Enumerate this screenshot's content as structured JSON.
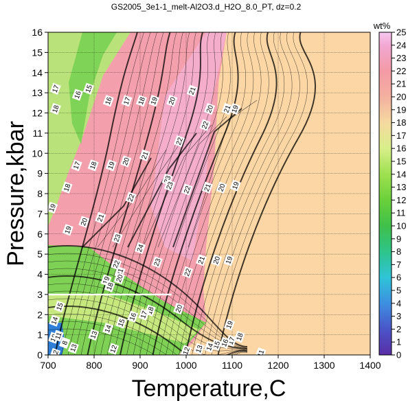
{
  "chart_data": {
    "type": "heatmap",
    "title": "GS2005_3e1-1_melt-Al2O3.d_H2O_8.0_PT, dz=0.2",
    "xlabel": "Temperature,C",
    "ylabel": "Pressure,kbar",
    "xlim": [
      700,
      1400
    ],
    "ylim": [
      0,
      16
    ],
    "xticks": [
      700,
      800,
      900,
      1000,
      1100,
      1200,
      1300,
      1400
    ],
    "yticks": [
      0,
      1,
      2,
      3,
      4,
      5,
      6,
      7,
      8,
      9,
      10,
      11,
      12,
      13,
      14,
      15,
      16
    ],
    "grid": true,
    "colorbar": {
      "label": "wt%",
      "range": [
        0,
        25
      ],
      "ticks": [
        0,
        1,
        2,
        3,
        4,
        5,
        6,
        7,
        8,
        9,
        10,
        11,
        12,
        13,
        14,
        15,
        16,
        17,
        18,
        19,
        20,
        21,
        22,
        23,
        24,
        25
      ],
      "stops": [
        {
          "v": 0,
          "color": "#5a2ea6"
        },
        {
          "v": 2,
          "color": "#4a55c8"
        },
        {
          "v": 4,
          "color": "#3d8fe0"
        },
        {
          "v": 6,
          "color": "#2fc4d8"
        },
        {
          "v": 8,
          "color": "#2ec48a"
        },
        {
          "v": 10,
          "color": "#3fc04a"
        },
        {
          "v": 12,
          "color": "#6ad03a"
        },
        {
          "v": 14,
          "color": "#9ee050"
        },
        {
          "v": 16,
          "color": "#d8ef8a"
        },
        {
          "v": 18,
          "color": "#f5d9a0"
        },
        {
          "v": 20,
          "color": "#f4b0a0"
        },
        {
          "v": 22,
          "color": "#f39aa6"
        },
        {
          "v": 24,
          "color": "#f2a8d2"
        },
        {
          "v": 25,
          "color": "#f6c8f0"
        }
      ]
    },
    "background_region_color": "#fcd6a4",
    "contour_labels": [
      {
        "text": "17",
        "x": 716,
        "y": 13.2
      },
      {
        "text": "15",
        "x": 788,
        "y": 13.2
      },
      {
        "text": "16",
        "x": 764,
        "y": 12.9
      },
      {
        "text": "16",
        "x": 831,
        "y": 12.6
      },
      {
        "text": "17",
        "x": 871,
        "y": 12.6
      },
      {
        "text": "18",
        "x": 903,
        "y": 12.6
      },
      {
        "text": "19",
        "x": 930,
        "y": 12.6
      },
      {
        "text": "20",
        "x": 969,
        "y": 12.6
      },
      {
        "text": "21",
        "x": 1013,
        "y": 13.1
      },
      {
        "text": "18",
        "x": 716,
        "y": 12.2
      },
      {
        "text": "20",
        "x": 1051,
        "y": 12.2
      },
      {
        "text": "19",
        "x": 1106,
        "y": 12.2
      },
      {
        "text": "21",
        "x": 1089,
        "y": 12.2
      },
      {
        "text": "22",
        "x": 1041,
        "y": 11.4
      },
      {
        "text": "22",
        "x": 985,
        "y": 10.6
      },
      {
        "text": "21",
        "x": 910,
        "y": 9.9
      },
      {
        "text": "20",
        "x": 869,
        "y": 9.6
      },
      {
        "text": "19",
        "x": 837,
        "y": 9.4
      },
      {
        "text": "18",
        "x": 798,
        "y": 9.4
      },
      {
        "text": "17",
        "x": 762,
        "y": 9.4
      },
      {
        "text": "18",
        "x": 741,
        "y": 8.3
      },
      {
        "text": "23",
        "x": 959,
        "y": 8.7
      },
      {
        "text": "23",
        "x": 964,
        "y": 8.4
      },
      {
        "text": "22",
        "x": 1002,
        "y": 8.2
      },
      {
        "text": "21",
        "x": 1046,
        "y": 8.3
      },
      {
        "text": "20",
        "x": 1077,
        "y": 8.3
      },
      {
        "text": "19",
        "x": 1107,
        "y": 8.4
      },
      {
        "text": "22",
        "x": 880,
        "y": 7.8
      },
      {
        "text": "21",
        "x": 814,
        "y": 6.8
      },
      {
        "text": "20",
        "x": 778,
        "y": 6.6
      },
      {
        "text": "19",
        "x": 743,
        "y": 6.2
      },
      {
        "text": "19",
        "x": 709,
        "y": 7.3
      },
      {
        "text": "23",
        "x": 850,
        "y": 5.8
      },
      {
        "text": "24",
        "x": 900,
        "y": 5.3
      },
      {
        "text": "23",
        "x": 937,
        "y": 4.6
      },
      {
        "text": "22",
        "x": 1003,
        "y": 4.1
      },
      {
        "text": "21",
        "x": 1033,
        "y": 4.7
      },
      {
        "text": "20",
        "x": 1066,
        "y": 4.7
      },
      {
        "text": "19",
        "x": 1093,
        "y": 4.7
      },
      {
        "text": "22",
        "x": 848,
        "y": 4.5
      },
      {
        "text": "21",
        "x": 856,
        "y": 4.1
      },
      {
        "text": "20",
        "x": 855,
        "y": 3.8
      },
      {
        "text": "19",
        "x": 826,
        "y": 3.7
      },
      {
        "text": "18",
        "x": 834,
        "y": 3.4
      },
      {
        "text": "15",
        "x": 725,
        "y": 2.4
      },
      {
        "text": "20",
        "x": 984,
        "y": 2.3
      },
      {
        "text": "18",
        "x": 922,
        "y": 2.2
      },
      {
        "text": "17",
        "x": 908,
        "y": 2.0
      },
      {
        "text": "16",
        "x": 884,
        "y": 1.9
      },
      {
        "text": "15",
        "x": 859,
        "y": 1.6
      },
      {
        "text": "14",
        "x": 830,
        "y": 1.3
      },
      {
        "text": "14",
        "x": 714,
        "y": 1.7
      },
      {
        "text": "13",
        "x": 799,
        "y": 1.0
      },
      {
        "text": "19",
        "x": 1094,
        "y": 1.5
      },
      {
        "text": "18",
        "x": 1116,
        "y": 0.9
      },
      {
        "text": "17",
        "x": 1098,
        "y": 0.7
      },
      {
        "text": "16",
        "x": 1084,
        "y": 0.6
      },
      {
        "text": "15",
        "x": 1066,
        "y": 0.5
      },
      {
        "text": "14",
        "x": 1051,
        "y": 0.4
      },
      {
        "text": "13",
        "x": 1028,
        "y": 0.3
      },
      {
        "text": "12",
        "x": 1000,
        "y": 0.2
      },
      {
        "text": "11",
        "x": 1162,
        "y": 0.08
      },
      {
        "text": "12",
        "x": 842,
        "y": 0.3
      },
      {
        "text": "13",
        "x": 755,
        "y": 0.35
      },
      {
        "text": "8",
        "x": 736,
        "y": 0.6
      },
      {
        "text": "10",
        "x": 712,
        "y": 0.85
      },
      {
        "text": "11",
        "x": 722,
        "y": 0.95
      },
      {
        "text": "12",
        "x": 715,
        "y": 0.05
      }
    ]
  }
}
